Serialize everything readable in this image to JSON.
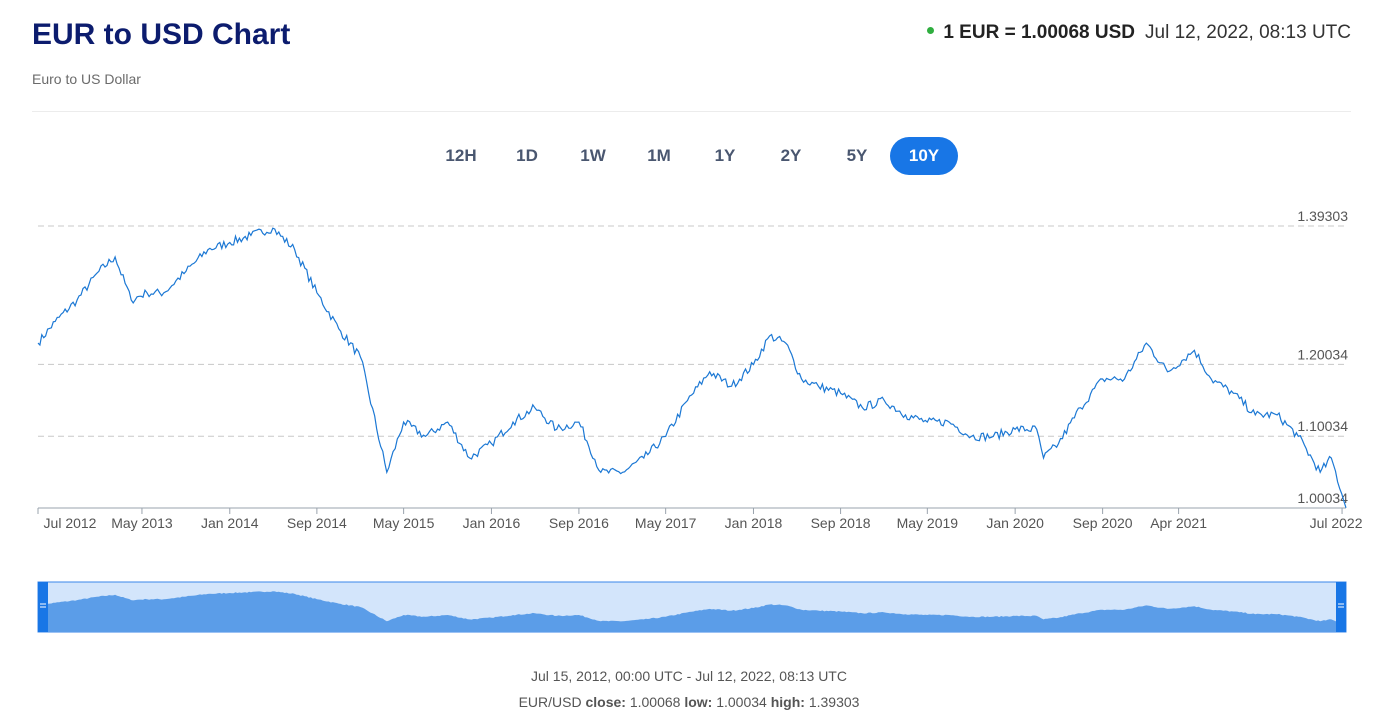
{
  "header": {
    "title": "EUR to USD Chart",
    "subtitle": "Euro to US Dollar",
    "rate_label": "1 EUR = 1.00068 USD",
    "rate_time": "Jul 12, 2022, 08:13 UTC",
    "status_color": "#2fae3f"
  },
  "ranges": [
    {
      "label": "12H",
      "active": false
    },
    {
      "label": "1D",
      "active": false
    },
    {
      "label": "1W",
      "active": false
    },
    {
      "label": "1M",
      "active": false
    },
    {
      "label": "1Y",
      "active": false
    },
    {
      "label": "2Y",
      "active": false
    },
    {
      "label": "5Y",
      "active": false
    },
    {
      "label": "10Y",
      "active": true
    }
  ],
  "chart_data": {
    "type": "line",
    "series": [
      {
        "x": [
          "2012-07-15",
          "2012-09-01",
          "2012-11-01",
          "2013-01-01",
          "2013-02-15",
          "2013-04-01",
          "2013-05-15",
          "2013-07-01",
          "2013-09-01",
          "2013-11-01",
          "2014-01-01",
          "2014-03-01",
          "2014-05-01",
          "2014-07-01",
          "2014-09-01",
          "2014-11-01",
          "2015-01-01",
          "2015-03-15",
          "2015-05-01",
          "2015-07-01",
          "2015-09-01",
          "2015-11-01",
          "2016-01-01",
          "2016-03-01",
          "2016-05-01",
          "2016-07-01",
          "2016-09-01",
          "2016-11-01",
          "2017-01-01",
          "2017-03-01",
          "2017-05-01",
          "2017-07-01",
          "2017-09-01",
          "2017-11-01",
          "2018-01-01",
          "2018-02-15",
          "2018-04-01",
          "2018-05-15",
          "2018-07-01",
          "2018-09-01",
          "2018-11-01",
          "2019-01-01",
          "2019-03-01",
          "2019-05-01",
          "2019-07-01",
          "2019-09-01",
          "2019-11-01",
          "2020-01-01",
          "2020-03-01",
          "2020-03-20",
          "2020-05-01",
          "2020-07-01",
          "2020-09-01",
          "2020-11-01",
          "2021-01-01",
          "2021-03-01",
          "2021-05-15",
          "2021-07-01",
          "2021-09-01",
          "2021-11-01",
          "2022-01-01",
          "2022-03-01",
          "2022-05-01",
          "2022-06-01",
          "2022-07-12"
        ],
        "y": [
          1.23,
          1.26,
          1.29,
          1.33,
          1.35,
          1.29,
          1.3,
          1.3,
          1.33,
          1.36,
          1.37,
          1.38,
          1.39,
          1.36,
          1.3,
          1.25,
          1.21,
          1.05,
          1.12,
          1.1,
          1.12,
          1.07,
          1.09,
          1.12,
          1.14,
          1.11,
          1.12,
          1.05,
          1.05,
          1.07,
          1.1,
          1.15,
          1.19,
          1.17,
          1.2,
          1.24,
          1.23,
          1.18,
          1.17,
          1.16,
          1.14,
          1.15,
          1.13,
          1.12,
          1.12,
          1.1,
          1.1,
          1.11,
          1.11,
          1.07,
          1.09,
          1.14,
          1.18,
          1.18,
          1.23,
          1.19,
          1.22,
          1.18,
          1.16,
          1.13,
          1.13,
          1.1,
          1.05,
          1.07,
          1.00068
        ]
      }
    ],
    "y_ticks": [
      1.39303,
      1.20034,
      1.10034,
      1.00034
    ],
    "x_ticks": [
      "Jul 2012",
      "May 2013",
      "Jan 2014",
      "Sep 2014",
      "May 2015",
      "Jan 2016",
      "Sep 2016",
      "May 2017",
      "Jan 2018",
      "Sep 2018",
      "May 2019",
      "Jan 2020",
      "Sep 2020",
      "Apr 2021",
      "Jul 2022"
    ],
    "ylim": [
      1.00034,
      1.39303
    ],
    "grid": "dashed horizontal",
    "line_color": "#1c78d4",
    "navigator_fill": "#5b9de8",
    "navigator_bg": "#d3e5fb"
  },
  "footer": {
    "range_text": "Jul 15, 2012, 00:00 UTC - Jul 12, 2022, 08:13 UTC",
    "pair": "EUR/USD",
    "close_label": "close:",
    "close_value": "1.00068",
    "low_label": "low:",
    "low_value": "1.00034",
    "high_label": "high:",
    "high_value": "1.39303"
  },
  "colors": {
    "title": "#0c1c6e",
    "accent": "#1876e6"
  }
}
